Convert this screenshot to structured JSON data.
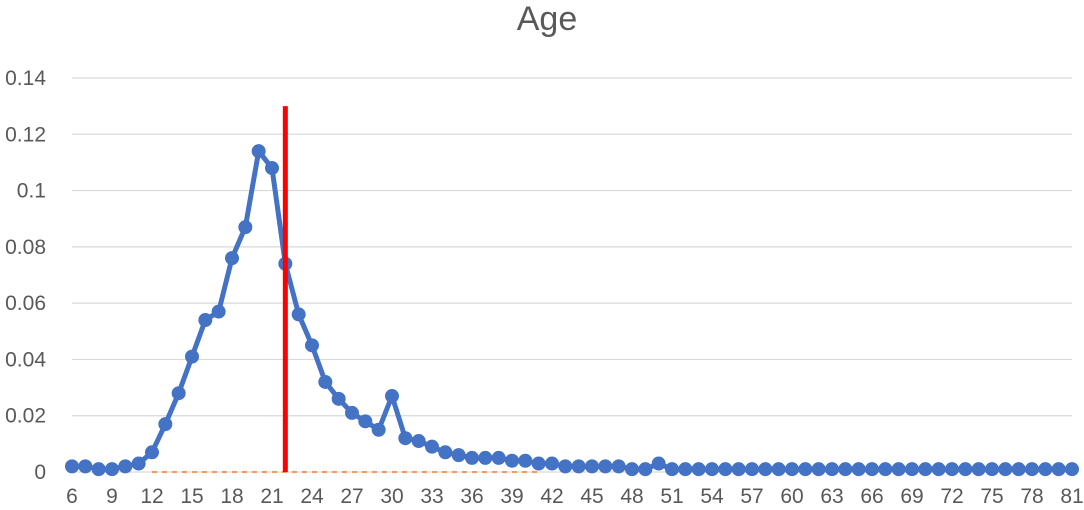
{
  "chart_data": {
    "type": "line",
    "title": "Age",
    "xlabel": "",
    "ylabel": "",
    "ylim": [
      0,
      0.14
    ],
    "yticks": [
      0,
      0.02,
      0.04,
      0.06,
      0.08,
      0.1,
      0.12,
      0.14
    ],
    "ytick_labels": [
      "0",
      "0.02",
      "0.04",
      "0.06",
      "0.08",
      "0.1",
      "0.12",
      "0.14"
    ],
    "xlim": [
      6,
      81
    ],
    "xticks": [
      6,
      9,
      12,
      15,
      18,
      21,
      24,
      27,
      30,
      33,
      36,
      39,
      42,
      45,
      48,
      51,
      54,
      57,
      60,
      63,
      66,
      69,
      72,
      75,
      78,
      81
    ],
    "grid": true,
    "legend": "none",
    "series": [
      {
        "color": "#4472c4",
        "x": [
          6,
          7,
          8,
          9,
          10,
          11,
          12,
          13,
          14,
          15,
          16,
          17,
          18,
          19,
          20,
          21,
          22,
          23,
          24,
          25,
          26,
          27,
          28,
          29,
          30,
          31,
          32,
          33,
          34,
          35,
          36,
          37,
          38,
          39,
          40,
          41,
          42,
          43,
          44,
          45,
          46,
          47,
          48,
          49,
          50,
          51,
          52,
          53,
          54,
          55,
          56,
          57,
          58,
          59,
          60,
          61,
          62,
          63,
          64,
          65,
          66,
          67,
          68,
          69,
          70,
          71,
          72,
          73,
          74,
          75,
          76,
          77,
          78,
          79,
          80,
          81
        ],
        "values": [
          0.002,
          0.002,
          0.001,
          0.001,
          0.002,
          0.003,
          0.007,
          0.017,
          0.028,
          0.041,
          0.054,
          0.057,
          0.076,
          0.087,
          0.114,
          0.108,
          0.074,
          0.056,
          0.045,
          0.032,
          0.026,
          0.021,
          0.018,
          0.015,
          0.027,
          0.012,
          0.011,
          0.009,
          0.007,
          0.006,
          0.005,
          0.005,
          0.005,
          0.004,
          0.004,
          0.003,
          0.003,
          0.002,
          0.002,
          0.002,
          0.002,
          0.002,
          0.001,
          0.001,
          0.003,
          0.001,
          0.001,
          0.001,
          0.001,
          0.001,
          0.001,
          0.001,
          0.001,
          0.001,
          0.001,
          0.001,
          0.001,
          0.001,
          0.001,
          0.001,
          0.001,
          0.001,
          0.001,
          0.001,
          0.001,
          0.001,
          0.001,
          0.001,
          0.001,
          0.001,
          0.001,
          0.001,
          0.001,
          0.001,
          0.001,
          0.001
        ]
      }
    ],
    "reference_line": {
      "orientation": "vertical",
      "x": 22,
      "y_range": [
        0,
        0.13
      ],
      "color": "#ff0000"
    },
    "baseline_dashed": {
      "x_range": [
        12,
        41
      ],
      "y": 0,
      "color": "#ed7d31"
    }
  }
}
